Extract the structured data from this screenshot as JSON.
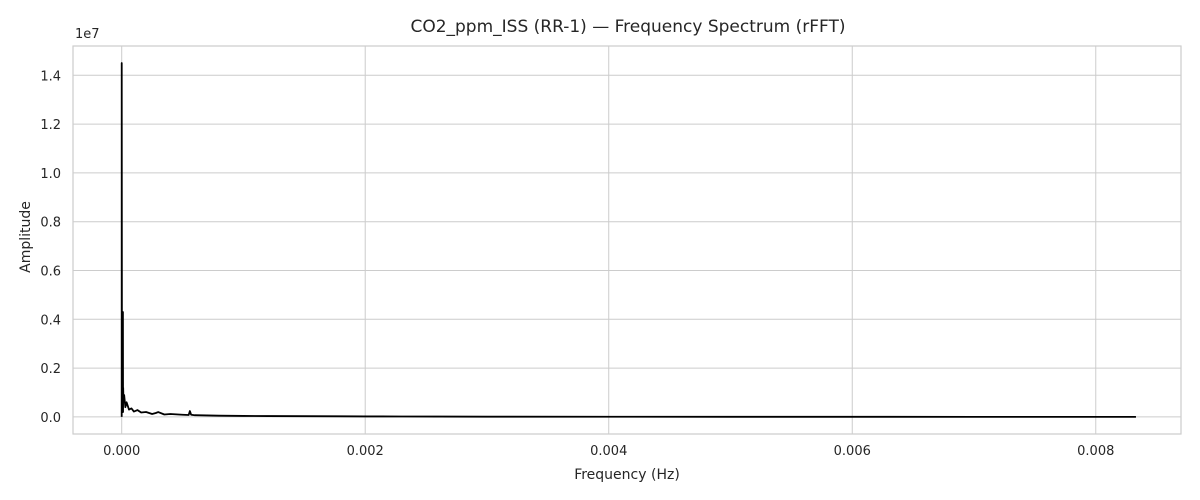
{
  "chart_data": {
    "type": "line",
    "title": "CO2_ppm_ISS (RR-1) — Frequency Spectrum (rFFT)",
    "xlabel": "Frequency (Hz)",
    "ylabel": "Amplitude",
    "y_scale_label": "1e7",
    "xlim": [
      -0.0004,
      0.0087
    ],
    "ylim": [
      -0.07,
      1.52
    ],
    "y_scale_factor": 10000000,
    "grid": true,
    "legend": "none",
    "x_ticks": [
      0.0,
      0.002,
      0.004,
      0.006,
      0.008
    ],
    "x_tick_labels": [
      "0.000",
      "0.002",
      "0.004",
      "0.006",
      "0.008"
    ],
    "y_ticks": [
      0.0,
      0.2,
      0.4,
      0.6,
      0.8,
      1.0,
      1.2,
      1.4
    ],
    "y_tick_labels": [
      "0.0",
      "0.2",
      "0.4",
      "0.6",
      "0.8",
      "1.0",
      "1.2",
      "1.4"
    ],
    "series": [
      {
        "color": "#000000",
        "x": [
          0.0,
          1e-07,
          2e-06,
          3e-06,
          4e-06,
          6e-06,
          8e-06,
          1e-05,
          1.1e-05,
          1.2e-05,
          1.5e-05,
          2e-05,
          3e-05,
          4e-05,
          6e-05,
          8e-05,
          0.0001,
          0.00013,
          0.00016,
          0.0002,
          0.00025,
          0.00028,
          0.0003,
          0.00035,
          0.0004,
          0.0005,
          0.00055,
          0.00056,
          0.00057,
          0.0006,
          0.0007,
          0.0008,
          0.001,
          0.0012,
          0.0015,
          0.0018,
          0.002,
          0.0023,
          0.0026,
          0.003,
          0.004,
          0.005,
          0.006,
          0.007,
          0.008,
          0.00833
        ],
        "y": [
          0.0,
          1.45,
          0.1,
          0.2,
          0.05,
          0.08,
          0.03,
          0.43,
          0.02,
          0.12,
          0.06,
          0.09,
          0.04,
          0.06,
          0.03,
          0.035,
          0.022,
          0.028,
          0.018,
          0.02,
          0.012,
          0.016,
          0.02,
          0.01,
          0.012,
          0.009,
          0.008,
          0.024,
          0.009,
          0.007,
          0.006,
          0.005,
          0.004,
          0.0035,
          0.003,
          0.0025,
          0.002,
          0.0018,
          0.0015,
          0.001,
          0.0007,
          0.0005,
          0.0004,
          0.0003,
          0.0002,
          0.0002
        ]
      }
    ]
  }
}
